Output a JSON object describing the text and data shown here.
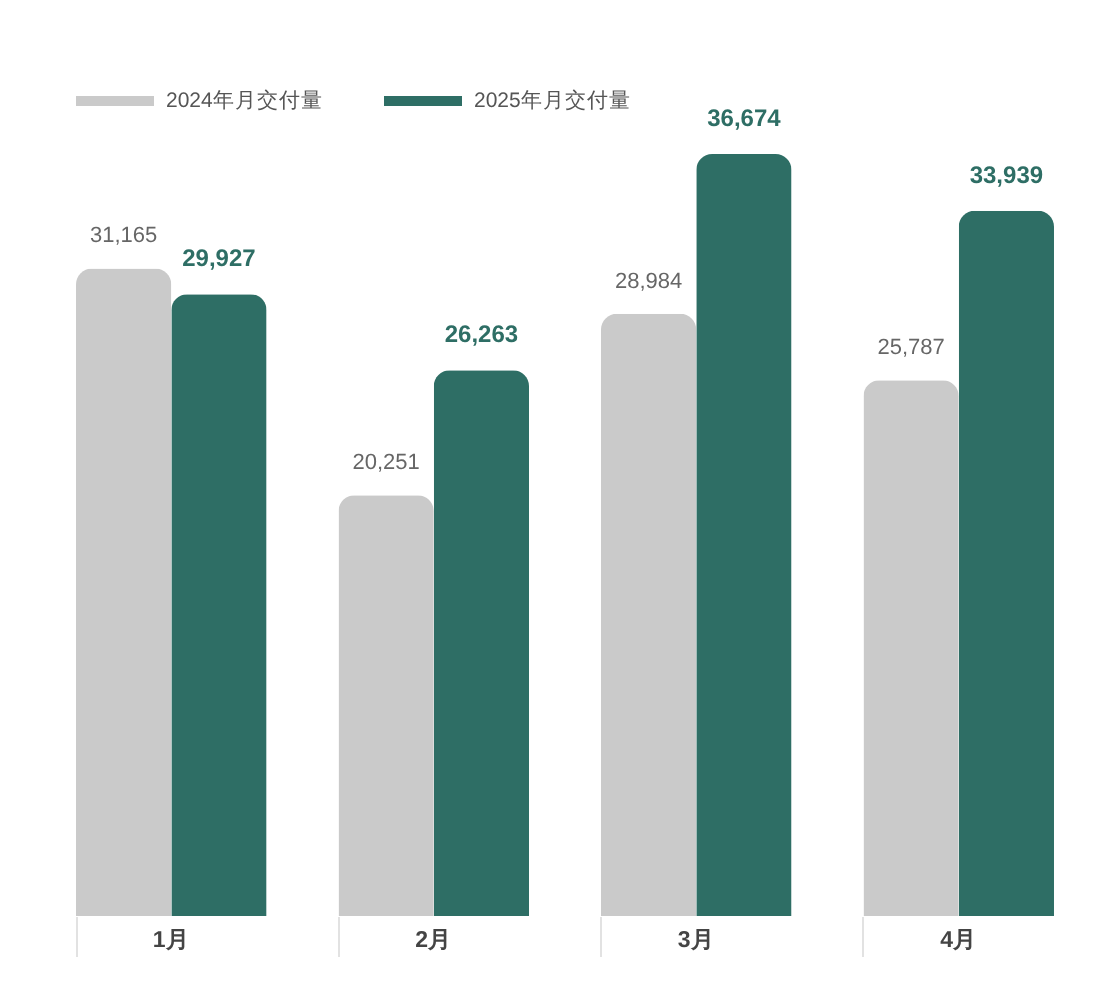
{
  "chart_data": {
    "type": "bar",
    "categories": [
      "1月",
      "2月",
      "3月",
      "4月"
    ],
    "series": [
      {
        "name": "2024年月交付量",
        "color": "#cacaca",
        "values": [
          31165,
          20251,
          28984,
          25787
        ],
        "value_labels": [
          "31,165",
          "20,251",
          "28,984",
          "25,787"
        ]
      },
      {
        "name": "2025年月交付量",
        "color": "#2e6e65",
        "values": [
          29927,
          26263,
          36674,
          33939
        ],
        "value_labels": [
          "29,927",
          "26,263",
          "36,674",
          "33,939"
        ]
      }
    ],
    "legend": "top left"
  }
}
